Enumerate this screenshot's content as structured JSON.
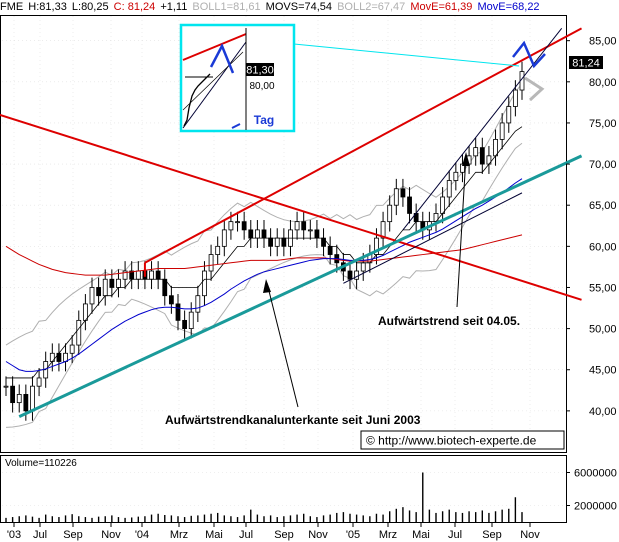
{
  "legend": {
    "symbol": "FME",
    "h": "H:81,33",
    "l": "L:80,25",
    "c": "C: 81,24",
    "chg": "+1,11",
    "boll1": "BOLL1=81,61",
    "movs": "MOVS=74,54",
    "boll2": "BOLL2=67,47",
    "move1": "MovE=61,39",
    "move2": "MovE=68,22"
  },
  "colors": {
    "price": "#000000",
    "boll": "#b0b0b0",
    "movs": "#000000",
    "move1": "#cc0000",
    "move2": "#0000cc",
    "trend_red": "#dd0000",
    "trend_teal": "#1a9a9a",
    "trend_black": "#000033",
    "inset_frame": "#00e5ee",
    "arrow_blue": "#1a3ad6",
    "arrow_gray": "#b8b8b8",
    "volume": "#000000"
  },
  "annotations": {
    "upper_trend_label": "Aufwärtstrend seit 04.05.",
    "lower_trend_label": "Aufwärtstrendkanalunterkante seit Juni 2003",
    "copyright": "©  http://www.biotech-experte.de",
    "inset_label": "Tag",
    "inset_price": "81,30",
    "inset_tick": "80,00",
    "last_price": "81,24",
    "volume_label": "Volume=110226"
  },
  "chart_data": {
    "type": "line",
    "title": "",
    "xlabel": "",
    "ylabel": "",
    "x_ticks": [
      "'03",
      "Jul",
      "Sep",
      "Nov",
      "'04",
      "Mrz",
      "Mai",
      "Jul",
      "Sep",
      "Nov",
      "'05",
      "Mrz",
      "Mai",
      "Jul",
      "Sep",
      "Nov"
    ],
    "y_ticks": [
      "85,00",
      "80,00",
      "75,00",
      "70,00",
      "65,00",
      "60,00",
      "55,00",
      "50,00",
      "45,00",
      "40,00"
    ],
    "ylim": [
      35,
      88
    ],
    "volume_ticks": [
      "6000000",
      "2000000"
    ],
    "volume_ylim": [
      0,
      8000000
    ],
    "grid": true,
    "price_weekly": [
      43,
      41,
      42,
      40,
      43,
      44,
      46,
      47,
      46,
      47,
      48,
      51,
      53,
      55,
      54,
      56,
      55,
      56,
      57,
      56,
      57,
      56,
      57,
      56,
      54,
      53,
      51,
      50,
      52,
      54,
      57,
      59,
      60,
      62,
      63,
      63,
      62,
      61,
      62,
      61,
      60,
      61,
      60,
      62,
      63,
      62,
      62,
      61,
      60,
      59,
      58,
      57,
      56,
      57,
      58,
      59,
      61,
      63,
      65,
      67,
      66,
      64,
      63,
      62,
      63,
      64,
      66,
      68,
      69,
      70,
      71,
      72,
      70,
      71,
      73,
      75,
      77,
      79,
      81.24
    ],
    "movs_weekly": [
      44,
      44,
      44,
      44,
      44,
      45,
      45,
      46,
      47,
      48,
      49,
      50,
      51,
      52,
      53,
      54,
      54,
      55,
      55,
      56,
      56,
      56,
      56,
      56,
      56,
      55,
      55,
      55,
      55,
      55,
      56,
      56,
      57,
      58,
      59,
      60,
      60,
      61,
      61,
      61,
      61,
      61,
      61,
      61,
      61,
      61,
      61,
      61,
      61,
      60,
      60,
      59,
      59,
      58,
      58,
      58,
      59,
      59,
      60,
      61,
      62,
      62,
      63,
      63,
      63,
      63,
      64,
      65,
      66,
      67,
      68,
      69,
      69,
      70,
      71,
      72,
      73,
      74,
      74.54
    ],
    "move1_weekly": [
      60,
      59.5,
      59,
      58.6,
      58.2,
      57.8,
      57.5,
      57.2,
      57,
      56.8,
      56.7,
      56.6,
      56.5,
      56.5,
      56.5,
      56.5,
      56.6,
      56.7,
      56.8,
      56.9,
      57,
      57.1,
      57.2,
      57.3,
      57.3,
      57.3,
      57.3,
      57.3,
      57.4,
      57.5,
      57.6,
      57.7,
      57.8,
      57.9,
      58,
      58.1,
      58.2,
      58.3,
      58.3,
      58.3,
      58.3,
      58.3,
      58.4,
      58.5,
      58.6,
      58.6,
      58.6,
      58.6,
      58.6,
      58.5,
      58.4,
      58.3,
      58.2,
      58.2,
      58.2,
      58.2,
      58.3,
      58.4,
      58.5,
      58.6,
      58.7,
      58.8,
      58.9,
      59,
      59.1,
      59.2,
      59.3,
      59.4,
      59.5,
      59.6,
      59.8,
      60,
      60.2,
      60.4,
      60.6,
      60.8,
      61,
      61.2,
      61.39
    ],
    "move2_weekly": [
      46,
      45.5,
      45,
      44.8,
      44.8,
      44.9,
      45.1,
      45.4,
      45.7,
      46,
      46.4,
      46.9,
      47.5,
      48.1,
      48.7,
      49.3,
      49.9,
      50.4,
      50.9,
      51.3,
      51.7,
      52,
      52.3,
      52.5,
      52.6,
      52.6,
      52.5,
      52.4,
      52.4,
      52.5,
      52.8,
      53.2,
      53.7,
      54.2,
      54.8,
      55.3,
      55.8,
      56.2,
      56.6,
      56.9,
      57.1,
      57.3,
      57.5,
      57.7,
      57.9,
      58.1,
      58.3,
      58.4,
      58.5,
      58.5,
      58.5,
      58.4,
      58.3,
      58.3,
      58.3,
      58.4,
      58.6,
      58.9,
      59.3,
      59.7,
      60.1,
      60.5,
      60.8,
      61.1,
      61.4,
      61.7,
      62.1,
      62.6,
      63.1,
      63.6,
      64.1,
      64.6,
      65,
      65.5,
      66,
      66.5,
      67.1,
      67.7,
      68.22
    ],
    "volume_weekly": [
      500000,
      600000,
      700000,
      800000,
      650000,
      500000,
      900000,
      700000,
      600000,
      800000,
      950000,
      700000,
      600000,
      500000,
      650000,
      700000,
      800000,
      600000,
      500000,
      550000,
      650000,
      700000,
      900000,
      1000000,
      850000,
      800000,
      700000,
      600000,
      750000,
      800000,
      900000,
      1000000,
      1100000,
      800000,
      700000,
      600000,
      800000,
      1500000,
      900000,
      700000,
      800000,
      600000,
      700000,
      800000,
      900000,
      1000000,
      700000,
      600000,
      800000,
      900000,
      1100000,
      1200000,
      1000000,
      900000,
      800000,
      700000,
      1000000,
      900000,
      1300000,
      1600000,
      1800000,
      1400000,
      1200000,
      6000000,
      1500000,
      1100000,
      1300000,
      1500000,
      1200000,
      1100000,
      1300000,
      1200000,
      1400000,
      1100000,
      1300000,
      1500000,
      1600000,
      3000000,
      1200000
    ]
  }
}
